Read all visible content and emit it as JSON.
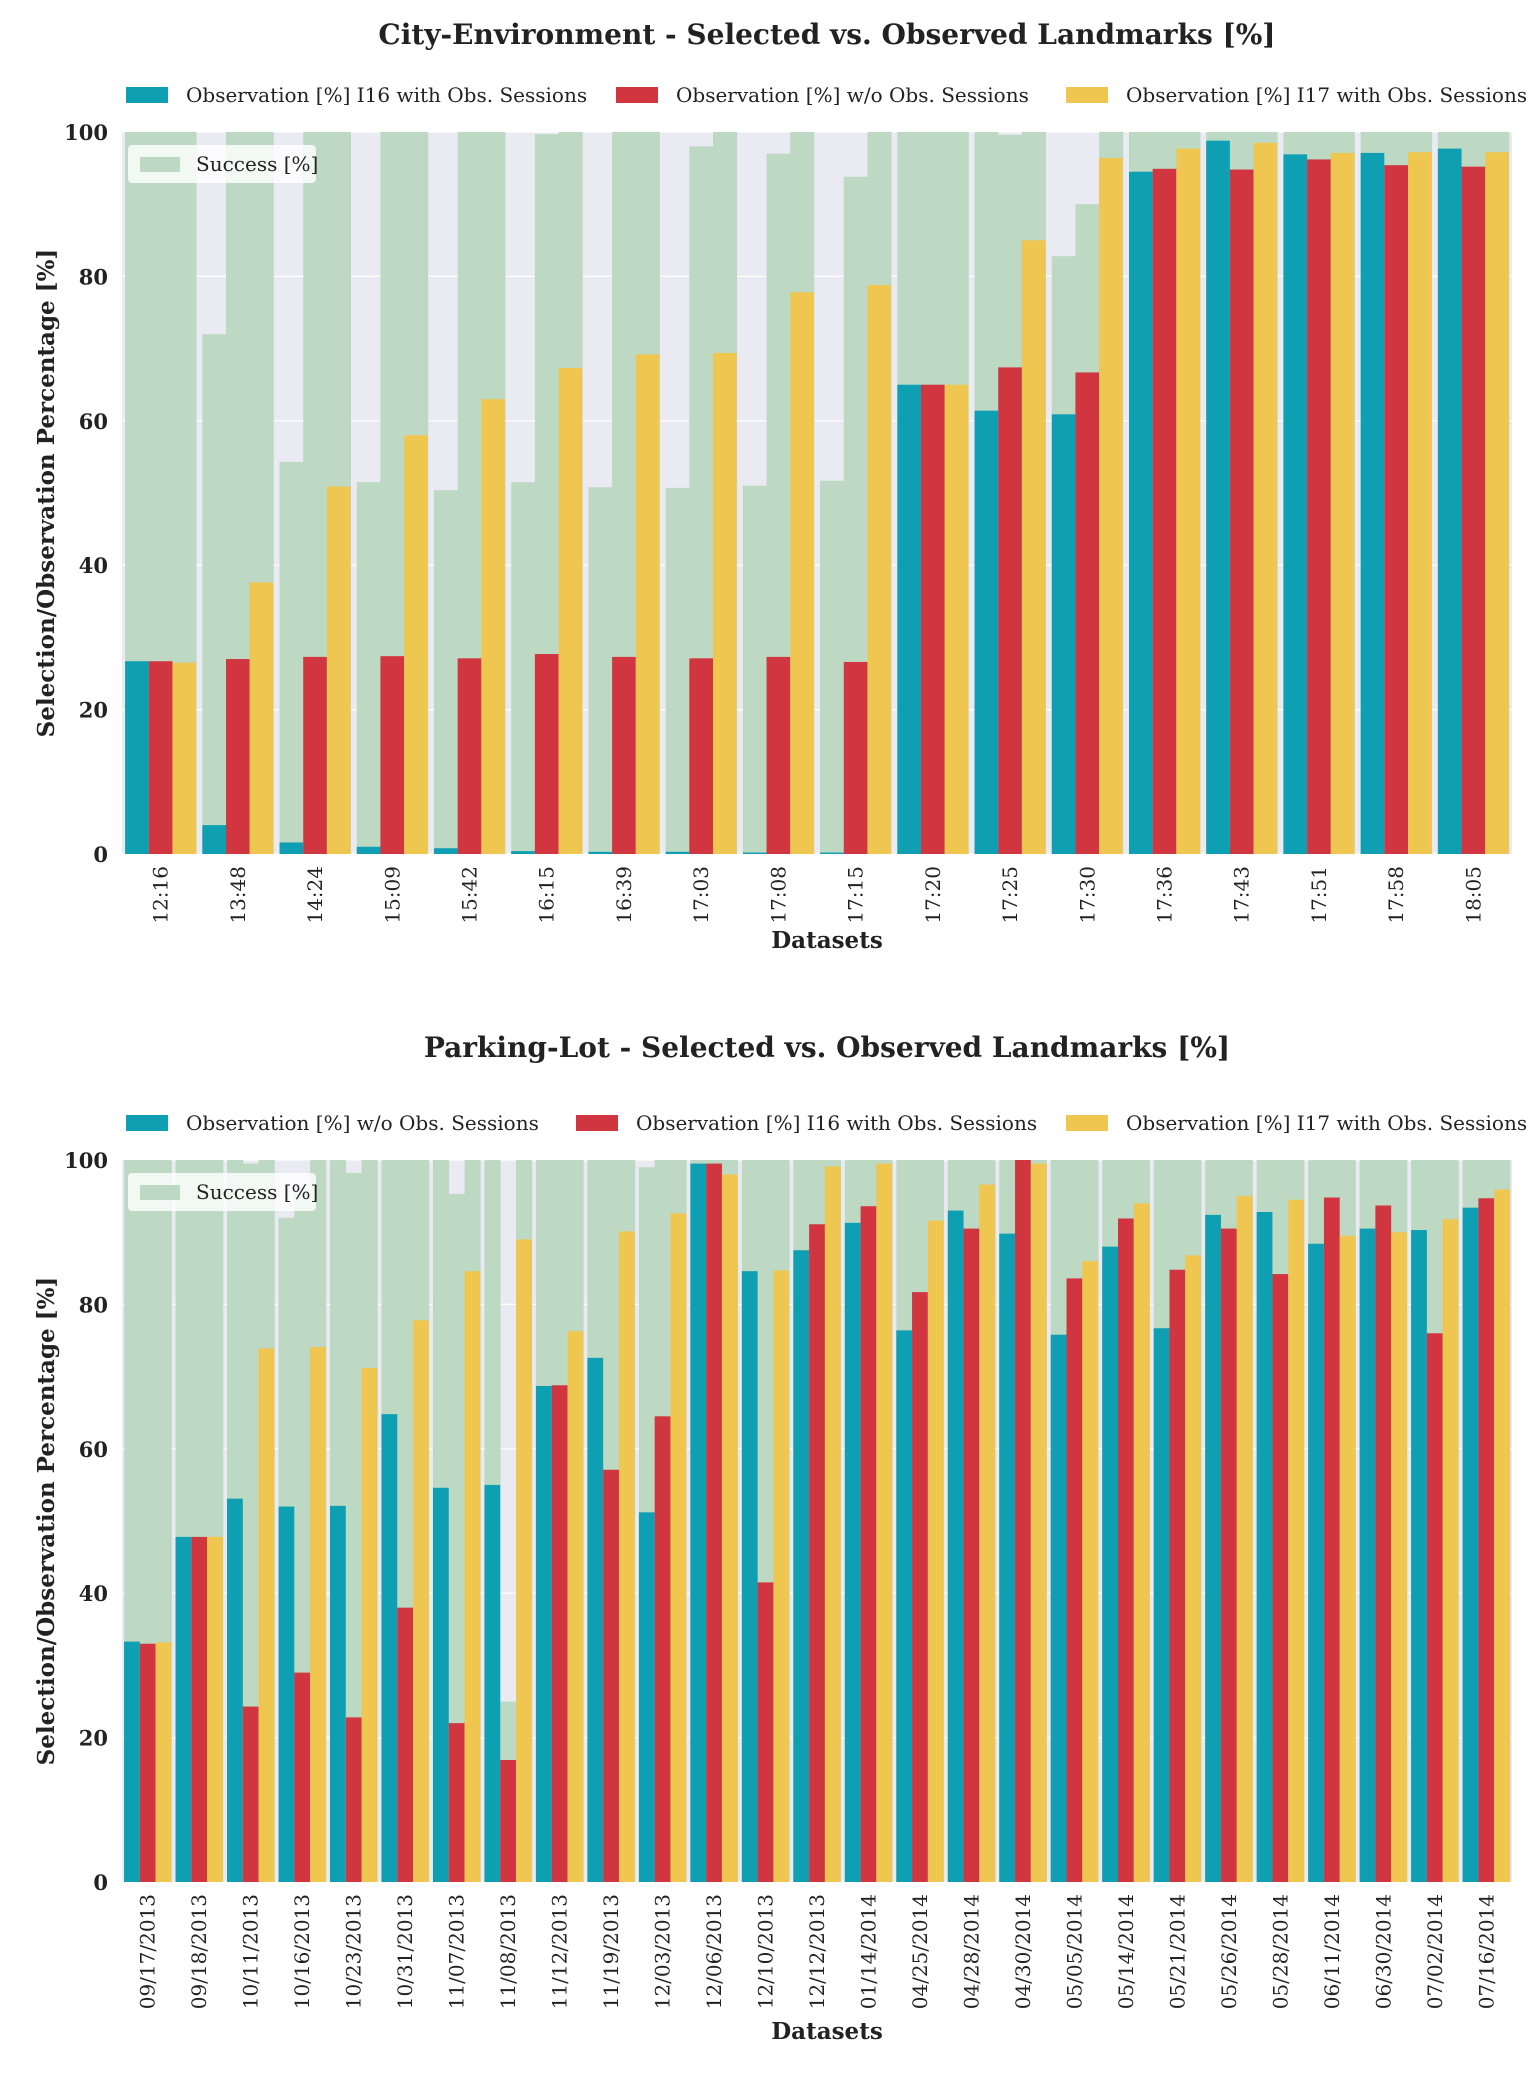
{
  "chart_data": [
    {
      "type": "bar",
      "title": "City-Environment - Selected vs. Observed Landmarks [%]",
      "xlabel": "Datasets",
      "ylabel": "Selection/Observation Percentage [%]",
      "ylim": [
        0,
        100
      ],
      "yticks": [
        "0",
        "20",
        "40",
        "60",
        "80",
        "100"
      ],
      "grid": true,
      "legend_position": "top",
      "inner_legend_position": "top-left",
      "categories": [
        "12:16",
        "13:48",
        "14:24",
        "15:09",
        "15:42",
        "16:15",
        "16:39",
        "17:03",
        "17:08",
        "17:15",
        "17:20",
        "17:25",
        "17:30",
        "17:36",
        "17:43",
        "17:51",
        "17:58",
        "18:05"
      ],
      "background_series": [
        {
          "name": "Success [%]",
          "color": "#bdd9c4",
          "values": [
            [
              100,
              100,
              100
            ],
            [
              72,
              100,
              100
            ],
            [
              54.3,
              100,
              100
            ],
            [
              51.5,
              100,
              100
            ],
            [
              50.4,
              100,
              100
            ],
            [
              51.5,
              99.7,
              100
            ],
            [
              50.8,
              100,
              100
            ],
            [
              50.7,
              98,
              100
            ],
            [
              51,
              97,
              100
            ],
            [
              51.7,
              93.8,
              100
            ],
            [
              100,
              100,
              100
            ],
            [
              100,
              99.6,
              100
            ],
            [
              82.8,
              90,
              100
            ],
            [
              100,
              100,
              100
            ],
            [
              100,
              100,
              100
            ],
            [
              100,
              100,
              100
            ],
            [
              100,
              100,
              100
            ],
            [
              100,
              100,
              100
            ]
          ]
        }
      ],
      "series": [
        {
          "name": "Observation [%] I16 with Obs. Sessions",
          "color": "#0e9fb3",
          "values": [
            26.7,
            4,
            1.6,
            1,
            0.8,
            0.4,
            0.3,
            0.3,
            0.2,
            0.2,
            65,
            61.4,
            60.9,
            94.5,
            98.8,
            96.9,
            97.1,
            97.7
          ]
        },
        {
          "name": "Observation [%] w/o Obs. Sessions",
          "color": "#d03540",
          "values": [
            26.7,
            27,
            27.3,
            27.4,
            27.1,
            27.7,
            27.3,
            27.1,
            27.3,
            26.6,
            65,
            67.4,
            66.7,
            94.9,
            94.8,
            96.2,
            95.4,
            95.2
          ]
        },
        {
          "name": "Observation [%] I17 with Obs. Sessions",
          "color": "#efc650",
          "values": [
            26.5,
            37.6,
            50.9,
            58,
            63,
            67.3,
            69.2,
            69.4,
            77.8,
            78.8,
            65,
            85,
            96.4,
            97.7,
            98.5,
            97.1,
            97.2,
            97.2
          ]
        }
      ]
    },
    {
      "type": "bar",
      "title": "Parking-Lot - Selected vs. Observed Landmarks [%]",
      "xlabel": "Datasets",
      "ylabel": "Selection/Observation Percentage [%]",
      "ylim": [
        0,
        100
      ],
      "yticks": [
        "0",
        "20",
        "40",
        "60",
        "80",
        "100"
      ],
      "grid": true,
      "legend_position": "top",
      "inner_legend_position": "top-left",
      "categories": [
        "09/17/2013",
        "09/18/2013",
        "10/11/2013",
        "10/16/2013",
        "10/23/2013",
        "10/31/2013",
        "11/07/2013",
        "11/08/2013",
        "11/12/2013",
        "11/19/2013",
        "12/03/2013",
        "12/06/2013",
        "12/10/2013",
        "12/12/2013",
        "01/14/2014",
        "04/25/2014",
        "04/28/2014",
        "04/30/2014",
        "05/05/2014",
        "05/14/2014",
        "05/21/2014",
        "05/26/2014",
        "05/28/2014",
        "06/11/2014",
        "06/30/2014",
        "07/02/2014",
        "07/16/2014"
      ],
      "background_series": [
        {
          "name": "Success [%]",
          "color": "#bdd9c4",
          "values": [
            [
              100,
              100,
              100
            ],
            [
              100,
              100,
              100
            ],
            [
              100,
              99.5,
              100
            ],
            [
              92,
              96,
              100
            ],
            [
              100,
              98.2,
              100
            ],
            [
              100,
              100,
              100
            ],
            [
              100,
              95.3,
              100
            ],
            [
              100,
              25,
              100
            ],
            [
              100,
              100,
              100
            ],
            [
              100,
              100,
              100
            ],
            [
              99,
              100,
              100
            ],
            [
              100,
              100,
              100
            ],
            [
              100,
              100,
              100
            ],
            [
              100,
              100,
              100
            ],
            [
              100,
              100,
              100
            ],
            [
              100,
              100,
              100
            ],
            [
              100,
              100,
              100
            ],
            [
              100,
              100,
              100
            ],
            [
              100,
              100,
              100
            ],
            [
              100,
              100,
              100
            ],
            [
              100,
              100,
              100
            ],
            [
              100,
              100,
              100
            ],
            [
              100,
              100,
              100
            ],
            [
              100,
              100,
              100
            ],
            [
              100,
              100,
              100
            ],
            [
              100,
              100,
              100
            ],
            [
              100,
              100,
              100
            ]
          ]
        }
      ],
      "series": [
        {
          "name": "Observation [%] w/o Obs. Sessions",
          "color": "#0e9fb3",
          "values": [
            33.3,
            47.8,
            53.1,
            52,
            52.1,
            64.8,
            54.6,
            55,
            68.7,
            72.6,
            51.2,
            99.5,
            84.6,
            87.5,
            91.3,
            76.4,
            93,
            89.8,
            75.8,
            88,
            76.7,
            92.4,
            92.8,
            88.4,
            90.5,
            90.3,
            93.4
          ]
        },
        {
          "name": "Observation [%] I16 with Obs. Sessions",
          "color": "#d03540",
          "values": [
            33,
            47.8,
            24.3,
            29,
            22.8,
            38,
            22,
            16.9,
            68.8,
            57.1,
            64.5,
            99.5,
            41.5,
            91.1,
            93.6,
            81.7,
            90.5,
            100,
            83.6,
            91.9,
            84.8,
            90.5,
            84.2,
            94.8,
            93.7,
            76,
            94.7
          ]
        },
        {
          "name": "Observation [%] I17 with Obs. Sessions",
          "color": "#efc650",
          "values": [
            33.2,
            47.8,
            73.9,
            74.1,
            71.2,
            77.8,
            84.6,
            89,
            76.3,
            90.1,
            92.6,
            98,
            84.7,
            99.1,
            99.5,
            91.6,
            96.6,
            99.5,
            86,
            94,
            86.8,
            95,
            94.5,
            89.5,
            90,
            91.8,
            95.9
          ]
        }
      ]
    }
  ]
}
